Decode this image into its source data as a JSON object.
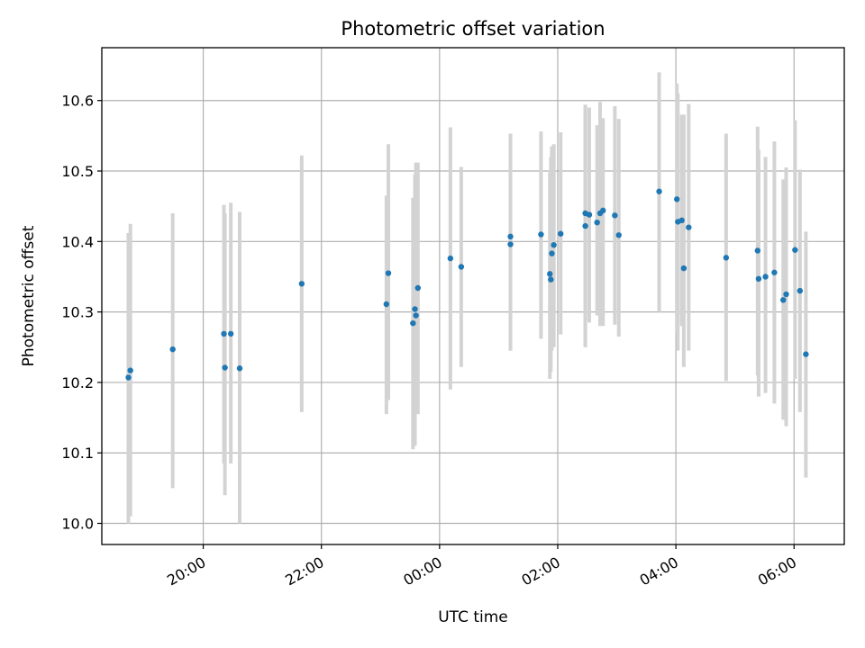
{
  "chart_data": {
    "type": "scatter",
    "title": "Photometric offset variation",
    "xlabel": "UTC time",
    "ylabel": "Photometric offset",
    "x_unit": "UTC time (HH:MM)",
    "xlim": [
      "18:17",
      "06:51"
    ],
    "ylim": [
      9.97,
      10.675
    ],
    "xticks": [
      "20:00",
      "22:00",
      "00:00",
      "02:00",
      "04:00",
      "06:00"
    ],
    "yticks": [
      "10.0",
      "10.1",
      "10.2",
      "10.3",
      "10.4",
      "10.5",
      "10.6"
    ],
    "grid": true,
    "marker_color": "#1f77b4",
    "errorbar_color": "#d3d3d3",
    "series": [
      {
        "x": [
          "18:44",
          "18:46",
          "19:29",
          "20:21",
          "20:22",
          "20:28",
          "20:37",
          "21:40",
          "23:06",
          "23:08",
          "23:33",
          "23:35",
          "23:36",
          "23:38",
          "00:11",
          "00:22",
          "01:12",
          "01:12",
          "01:43",
          "01:52",
          "01:53",
          "01:54",
          "01:56",
          "02:03",
          "02:28",
          "02:28",
          "02:32",
          "02:40",
          "02:43",
          "02:46",
          "02:58",
          "03:02",
          "03:43",
          "04:01",
          "04:02",
          "04:06",
          "04:08",
          "04:13",
          "04:51",
          "05:23",
          "05:24",
          "05:31",
          "05:40",
          "05:49",
          "05:52",
          "06:01",
          "06:06",
          "06:12"
        ],
        "y": [
          10.207,
          10.217,
          10.247,
          10.269,
          10.221,
          10.269,
          10.22,
          10.34,
          10.311,
          10.355,
          10.284,
          10.304,
          10.295,
          10.334,
          10.376,
          10.364,
          10.407,
          10.396,
          10.41,
          10.354,
          10.346,
          10.383,
          10.395,
          10.411,
          10.44,
          10.422,
          10.438,
          10.427,
          10.44,
          10.444,
          10.437,
          10.409,
          10.471,
          10.46,
          10.428,
          10.43,
          10.362,
          10.42,
          10.377,
          10.387,
          10.347,
          10.35,
          10.356,
          10.317,
          10.325,
          10.388,
          10.33,
          10.24
        ],
        "yerr_low": [
          10.0,
          10.01,
          10.05,
          10.085,
          10.04,
          10.085,
          10.0,
          10.158,
          10.155,
          10.175,
          10.105,
          10.11,
          10.155,
          10.155,
          10.19,
          10.222,
          10.245,
          10.245,
          10.262,
          10.205,
          10.215,
          10.245,
          10.25,
          10.268,
          10.25,
          10.25,
          10.285,
          10.295,
          10.28,
          10.28,
          10.282,
          10.265,
          10.3,
          10.27,
          10.245,
          10.28,
          10.222,
          10.245,
          10.202,
          10.21,
          10.18,
          10.185,
          10.17,
          10.147,
          10.138,
          10.205,
          10.158,
          10.065
        ],
        "yerr_high": [
          10.412,
          10.425,
          10.44,
          10.452,
          10.44,
          10.455,
          10.442,
          10.522,
          10.465,
          10.538,
          10.462,
          10.495,
          10.512,
          10.512,
          10.562,
          10.506,
          10.553,
          10.553,
          10.556,
          10.498,
          10.52,
          10.535,
          10.538,
          10.555,
          10.594,
          10.594,
          10.59,
          10.565,
          10.598,
          10.575,
          10.592,
          10.574,
          10.64,
          10.624,
          10.61,
          10.58,
          10.58,
          10.595,
          10.553,
          10.563,
          10.53,
          10.52,
          10.542,
          10.488,
          10.505,
          10.572,
          10.502,
          10.414
        ]
      }
    ]
  }
}
